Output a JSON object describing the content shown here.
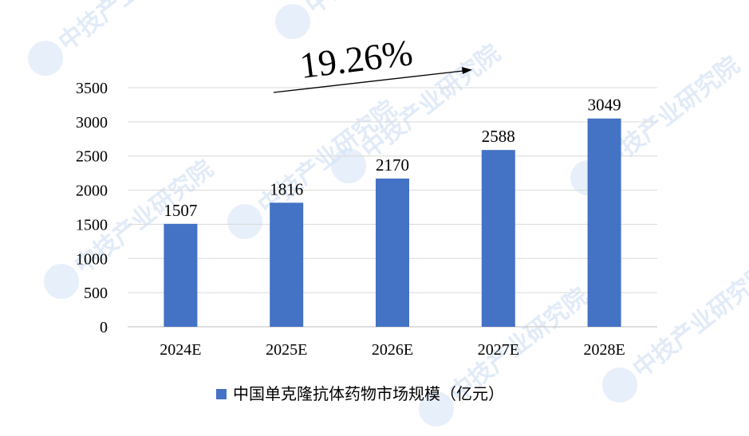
{
  "chart_data": {
    "type": "bar",
    "categories": [
      "2024E",
      "2025E",
      "2026E",
      "2027E",
      "2028E"
    ],
    "series": [
      {
        "name": "中国单克隆抗体药物市场规模（亿元）",
        "values": [
          1507,
          1816,
          2170,
          2588,
          3049
        ],
        "color": "#4472c4"
      }
    ],
    "ylim": [
      0,
      3500
    ],
    "yticks": [
      0,
      500,
      1000,
      1500,
      2000,
      2500,
      3000,
      3500
    ],
    "grid": true,
    "legend": "bottom",
    "annotation": "19.26%",
    "watermark": "中技产业研究院"
  }
}
